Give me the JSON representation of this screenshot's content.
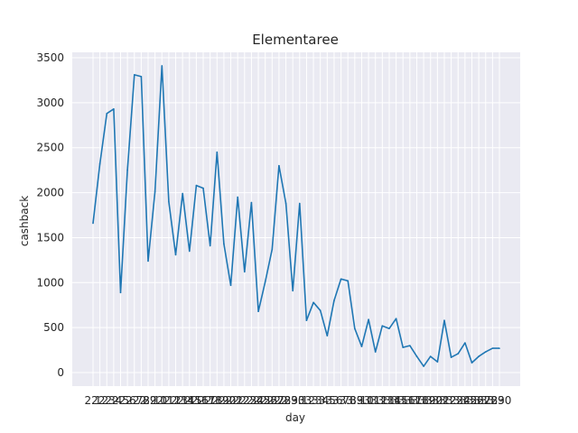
{
  "chart_data": {
    "type": "line",
    "title": "Elementaree",
    "xlabel": "day",
    "ylabel": "cashback",
    "ylim": [
      -150,
      3560
    ],
    "yticks": [
      0,
      500,
      1000,
      1500,
      2000,
      2500,
      3000,
      3500
    ],
    "ytick_labels": [
      "0",
      "500",
      "1000",
      "1500",
      "2000",
      "2500",
      "3000",
      "3500"
    ],
    "grid": true,
    "line_color": "#1f77b4",
    "plot_bg": "#eaeaf2",
    "x": [
      "2.1",
      "2.2",
      "2.3",
      "2.4",
      "2.5",
      "2.6",
      "2.7",
      "2.8",
      "2.9",
      "2.10",
      "2.11",
      "2.12",
      "2.13",
      "2.14",
      "2.15",
      "2.16",
      "2.17",
      "2.18",
      "2.19",
      "2.20",
      "2.21",
      "2.22",
      "2.23",
      "2.24",
      "2.25",
      "2.26",
      "2.27",
      "2.28",
      "2.29",
      "2.30",
      "3.1",
      "3.2",
      "3.3",
      "3.4",
      "3.5",
      "3.6",
      "3.7",
      "3.8",
      "3.9",
      "3.10",
      "3.11",
      "3.12",
      "3.13",
      "3.14",
      "3.15",
      "3.16",
      "3.17",
      "3.18",
      "3.19",
      "3.20",
      "3.21",
      "3.22",
      "3.23",
      "3.24",
      "3.25",
      "3.26",
      "3.27",
      "3.28",
      "3.29",
      "3.30"
    ],
    "series": [
      {
        "name": "",
        "values": [
          1660,
          2320,
          2880,
          2930,
          890,
          2250,
          3310,
          3290,
          1240,
          2010,
          3410,
          1900,
          1310,
          1990,
          1350,
          2080,
          2050,
          1410,
          2450,
          1430,
          970,
          1950,
          1120,
          1890,
          680,
          1010,
          1370,
          2300,
          1880,
          910,
          1880,
          580,
          780,
          690,
          410,
          800,
          1040,
          1020,
          490,
          290,
          590,
          230,
          520,
          490,
          600,
          280,
          300,
          180,
          70,
          180,
          120,
          580,
          170,
          210,
          330,
          110,
          180,
          230,
          270,
          270
        ]
      }
    ]
  }
}
